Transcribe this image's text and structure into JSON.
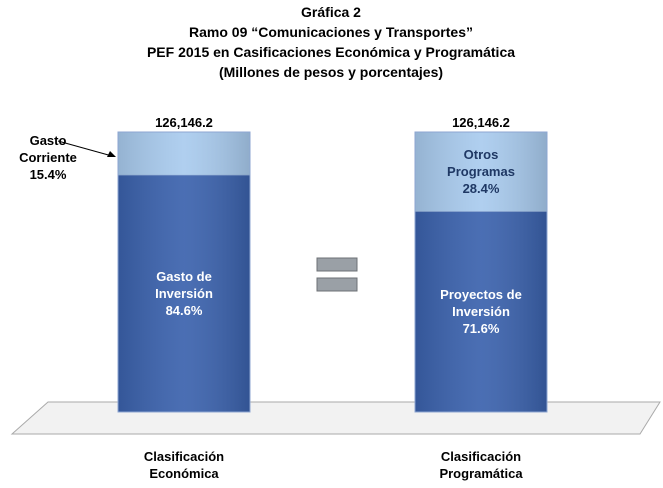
{
  "chart_data": {
    "type": "stacked_bar",
    "title": [
      "Gráfica 2",
      "Ramo 09 “Comunicaciones y Transportes”",
      "PEF 2015 en Casificaciones Económica y Programática",
      "(Millones de pesos y porcentajes)"
    ],
    "ylim": [
      0,
      100
    ],
    "bars": [
      {
        "category": "Clasificación Económica",
        "total": 126146.2,
        "total_label": "126,146.2",
        "segments": [
          {
            "name": "Gasto de Inversión",
            "value": 84.6,
            "value_label": "84.6%",
            "color": "#3b62ad"
          },
          {
            "name": "Gasto Corriente",
            "value": 15.4,
            "value_label": "15.4%",
            "color": "#a9cbee"
          }
        ]
      },
      {
        "category": "Clasificación Programática",
        "total": 126146.2,
        "total_label": "126,146.2",
        "segments": [
          {
            "name": "Proyectos de Inversión",
            "value": 71.6,
            "value_label": "71.6%",
            "color": "#3b62ad"
          },
          {
            "name": "Otros Programas",
            "value": 28.4,
            "value_label": "28.4%",
            "color": "#a9cbee"
          }
        ]
      }
    ]
  }
}
